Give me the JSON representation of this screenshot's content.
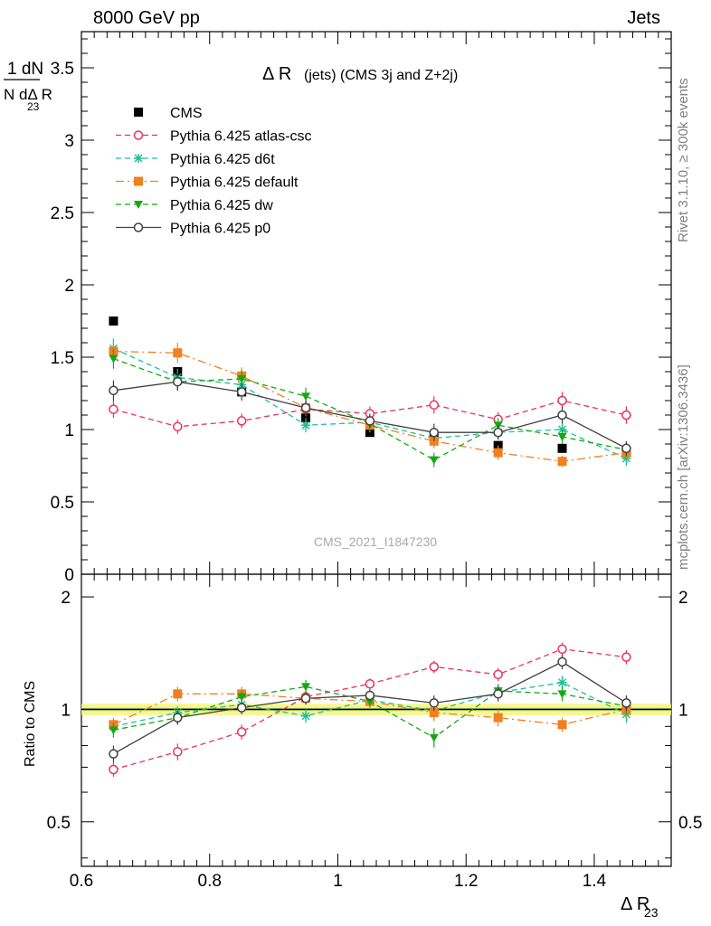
{
  "header": {
    "left": "8000 GeV pp",
    "right": "Jets"
  },
  "side_labels": {
    "rivet": "Rivet 3.1.10, ≥ 300k events",
    "mcplots": "mcplots.cern.ch [arXiv:1306.3436]"
  },
  "chart_data": [
    {
      "type": "scatter",
      "title": "Δ R (jets) (CMS 3j and Z+2j)",
      "title_main": "Δ R",
      "title_sub": "(jets) (CMS 3j and Z+2j)",
      "watermark": "CMS_2021_I1847230",
      "ylabel_num": "1  dN",
      "ylabel_den": "N dΔ R",
      "ylabel_den_sub": "23",
      "ylim": [
        0,
        3.75
      ],
      "xlim": [
        0.6,
        1.52
      ],
      "y_ticks": [
        "0",
        "0.5",
        "1",
        "1.5",
        "2",
        "2.5",
        "3",
        "3.5"
      ],
      "x": [
        0.65,
        0.75,
        0.85,
        0.95,
        1.05,
        1.15,
        1.25,
        1.35,
        1.45
      ],
      "legend": [
        "CMS",
        "Pythia 6.425 atlas-csc",
        "Pythia 6.425 d6t",
        "Pythia 6.425 default",
        "Pythia 6.425 dw",
        "Pythia 6.425 p0"
      ],
      "series": [
        {
          "name": "CMS",
          "color": "#000000",
          "marker": "filled-square",
          "values": [
            1.75,
            1.4,
            1.26,
            1.08,
            0.98,
            0.95,
            0.89,
            0.87,
            0.84
          ]
        },
        {
          "name": "Pythia 6.425 atlas-csc",
          "color": "#e8335a",
          "marker": "open-circle",
          "line": "dashed",
          "values": [
            1.14,
            1.02,
            1.06,
            1.14,
            1.11,
            1.17,
            1.07,
            1.2,
            1.1
          ],
          "errors": [
            0.06,
            0.05,
            0.05,
            0.05,
            0.05,
            0.06,
            0.05,
            0.06,
            0.06
          ]
        },
        {
          "name": "Pythia 6.425 d6t",
          "color": "#1fbf9a",
          "marker": "star",
          "line": "dashed",
          "values": [
            1.56,
            1.36,
            1.31,
            1.03,
            1.05,
            0.94,
            0.98,
            1.0,
            0.8
          ],
          "errors": [
            0.07,
            0.06,
            0.06,
            0.05,
            0.05,
            0.05,
            0.05,
            0.05,
            0.05
          ]
        },
        {
          "name": "Pythia 6.425 default",
          "color": "#f08020",
          "marker": "filled-square",
          "line": "dashdot",
          "values": [
            1.54,
            1.53,
            1.37,
            1.15,
            1.03,
            0.92,
            0.84,
            0.78,
            0.84
          ],
          "errors": [
            0.07,
            0.07,
            0.06,
            0.05,
            0.05,
            0.05,
            0.05,
            0.04,
            0.05
          ]
        },
        {
          "name": "Pythia 6.425 dw",
          "color": "#15a815",
          "marker": "down-triangle",
          "line": "dashed",
          "values": [
            1.49,
            1.33,
            1.35,
            1.23,
            1.04,
            0.79,
            1.03,
            0.95,
            0.86
          ],
          "errors": [
            0.07,
            0.06,
            0.06,
            0.06,
            0.05,
            0.05,
            0.05,
            0.05,
            0.05
          ]
        },
        {
          "name": "Pythia 6.425 p0",
          "color": "#404040",
          "marker": "open-circle",
          "line": "solid",
          "values": [
            1.27,
            1.33,
            1.26,
            1.15,
            1.06,
            0.98,
            0.98,
            1.1,
            0.87
          ],
          "errors": [
            0.07,
            0.06,
            0.06,
            0.05,
            0.05,
            0.06,
            0.05,
            0.06,
            0.05
          ]
        }
      ]
    },
    {
      "type": "scatter",
      "ylabel": "Ratio to CMS",
      "xlabel": "Δ R",
      "xlabel_sub": "23",
      "y_scale": "log",
      "ylim": [
        0.38,
        2.3
      ],
      "xlim": [
        0.6,
        1.52
      ],
      "y_ticks": [
        "0.5",
        "1",
        "2"
      ],
      "x_ticks": [
        "0.6",
        "0.8",
        "1",
        "1.2",
        "1.4"
      ],
      "x": [
        0.65,
        0.75,
        0.85,
        0.95,
        1.05,
        1.15,
        1.25,
        1.35,
        1.45
      ],
      "band_color": "#f5f570",
      "series": [
        {
          "name": "Pythia 6.425 atlas-csc",
          "color": "#e8335a",
          "marker": "open-circle",
          "line": "dashed",
          "values": [
            0.69,
            0.77,
            0.87,
            1.08,
            1.17,
            1.3,
            1.24,
            1.45,
            1.38
          ],
          "errors": [
            0.03,
            0.04,
            0.04,
            0.04,
            0.04,
            0.05,
            0.05,
            0.06,
            0.06
          ]
        },
        {
          "name": "Pythia 6.425 d6t",
          "color": "#1fbf9a",
          "marker": "star",
          "line": "dashed",
          "values": [
            0.9,
            0.98,
            1.03,
            0.96,
            1.06,
            0.99,
            1.11,
            1.18,
            0.97
          ],
          "errors": [
            0.04,
            0.04,
            0.04,
            0.04,
            0.04,
            0.05,
            0.05,
            0.05,
            0.05
          ]
        },
        {
          "name": "Pythia 6.425 default",
          "color": "#f08020",
          "marker": "filled-square",
          "line": "dashdot",
          "values": [
            0.91,
            1.1,
            1.1,
            1.07,
            1.05,
            0.98,
            0.95,
            0.91,
            1.0
          ],
          "errors": [
            0.04,
            0.05,
            0.05,
            0.04,
            0.04,
            0.05,
            0.05,
            0.04,
            0.05
          ]
        },
        {
          "name": "Pythia 6.425 dw",
          "color": "#15a815",
          "marker": "down-triangle",
          "line": "dashed",
          "values": [
            0.88,
            0.95,
            1.08,
            1.15,
            1.05,
            0.84,
            1.12,
            1.1,
            1.02
          ],
          "errors": [
            0.04,
            0.04,
            0.04,
            0.05,
            0.04,
            0.05,
            0.05,
            0.05,
            0.05
          ]
        },
        {
          "name": "Pythia 6.425 p0",
          "color": "#404040",
          "marker": "open-circle",
          "line": "solid",
          "values": [
            0.76,
            0.95,
            1.01,
            1.07,
            1.09,
            1.04,
            1.1,
            1.34,
            1.04
          ],
          "errors": [
            0.04,
            0.04,
            0.04,
            0.04,
            0.04,
            0.05,
            0.05,
            0.06,
            0.05
          ]
        }
      ]
    }
  ]
}
